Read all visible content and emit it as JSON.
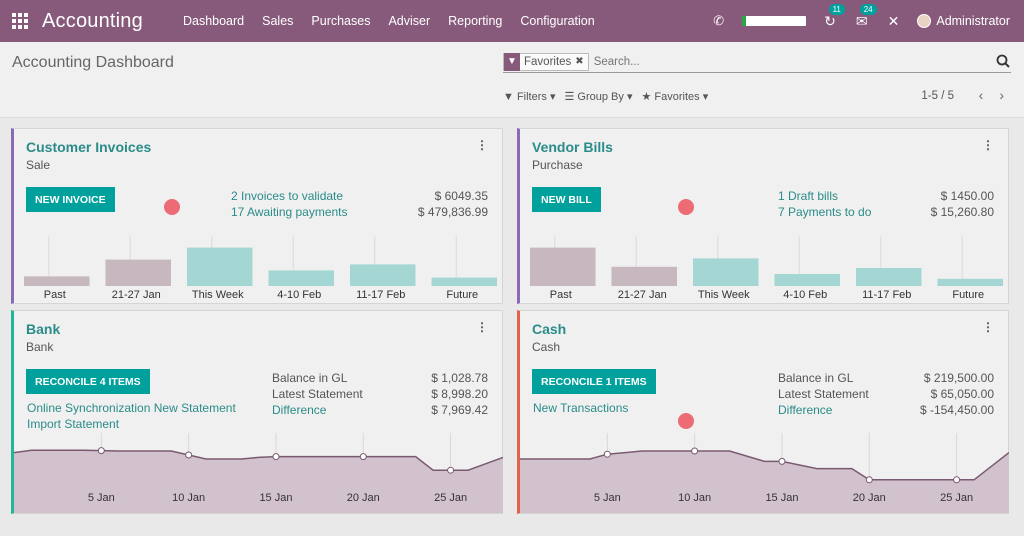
{
  "navbar": {
    "brand": "Accounting",
    "menu": [
      "Dashboard",
      "Sales",
      "Purchases",
      "Adviser",
      "Reporting",
      "Configuration"
    ],
    "activity_badge": "11",
    "messages_badge": "24",
    "user": "Administrator",
    "accent_color": "#875a7b"
  },
  "control": {
    "title": "Accounting Dashboard",
    "facet_label": "Favorites",
    "search_placeholder": "Search...",
    "filters_label": "Filters",
    "groupby_label": "Group By",
    "favorites_label": "Favorites",
    "pager": "1-5 / 5"
  },
  "cards": [
    {
      "title": "Customer Invoices",
      "subtitle": "Sale",
      "button": "NEW INVOICE",
      "border_color": "#8b6ab5",
      "links": [
        "2 Invoices to validate",
        "17 Awaiting payments"
      ],
      "amounts": [
        "$ 6049.35",
        "$ 479,836.99"
      ]
    },
    {
      "title": "Vendor Bills",
      "subtitle": "Purchase",
      "button": "NEW BILL",
      "border_color": "#8b6ab5",
      "links": [
        "1 Draft bills",
        "7 Payments to do"
      ],
      "amounts": [
        "$ 1450.00",
        "$ 15,260.80"
      ]
    },
    {
      "title": "Bank",
      "subtitle": "Bank",
      "button": "RECONCILE 4 ITEMS",
      "border_color": "#21b799",
      "labels": [
        "Balance in GL",
        "Latest Statement"
      ],
      "links": [
        "Online Synchronization New Statement",
        "Import Statement",
        "Difference"
      ],
      "amounts": [
        "$ 1,028.78",
        "$ 8,998.20",
        "$ 7,969.42"
      ]
    },
    {
      "title": "Cash",
      "subtitle": "Cash",
      "button": "RECONCILE 1 ITEMS",
      "border_color": "#e3624f",
      "labels": [
        "Balance in GL",
        "Latest Statement"
      ],
      "links": [
        "New Transactions",
        "Difference"
      ],
      "amounts": [
        "$ 219,500.00",
        "$ 65,050.00",
        "$ -154,450.00"
      ]
    }
  ],
  "chart_data": [
    {
      "type": "bar",
      "categories": [
        "Past",
        "21-27 Jan",
        "This Week",
        "4-10 Feb",
        "11-17 Feb",
        "Future"
      ],
      "values": [
        8,
        22,
        32,
        13,
        18,
        7
      ],
      "colors": [
        "#c6b8be",
        "#c6b8be",
        "#a4d7d3",
        "#a4d7d3",
        "#a4d7d3",
        "#a4d7d3"
      ]
    },
    {
      "type": "bar",
      "categories": [
        "Past",
        "21-27 Jan",
        "This Week",
        "4-10 Feb",
        "11-17 Feb",
        "Future"
      ],
      "values": [
        32,
        16,
        23,
        10,
        15,
        6
      ],
      "colors": [
        "#c6b8be",
        "#c6b8be",
        "#a4d7d3",
        "#a4d7d3",
        "#a4d7d3",
        "#a4d7d3"
      ]
    },
    {
      "type": "area",
      "tick_labels": [
        "5 Jan",
        "10 Jan",
        "15 Jan",
        "20 Jan",
        "25 Jan"
      ],
      "x": [
        0,
        1,
        3,
        4,
        6,
        7,
        8,
        9,
        11,
        12,
        13,
        14,
        15,
        16,
        17,
        18,
        20,
        21,
        23,
        24,
        25,
        26,
        27,
        28
      ],
      "y": [
        68,
        71,
        71,
        71,
        70,
        70,
        70,
        70,
        60,
        60,
        60,
        62,
        63,
        63,
        63,
        63,
        63,
        63,
        63,
        46,
        46,
        46,
        54,
        62
      ],
      "ylim": [
        0,
        100
      ],
      "markers": [
        5,
        10,
        15,
        20,
        25
      ]
    },
    {
      "type": "area",
      "tick_labels": [
        "5 Jan",
        "10 Jan",
        "15 Jan",
        "20 Jan",
        "25 Jan"
      ],
      "x": [
        0,
        1,
        3,
        4,
        5,
        7,
        8,
        10,
        12,
        14,
        15,
        17,
        18,
        19,
        20,
        22,
        23,
        25,
        26,
        28
      ],
      "y": [
        60,
        60,
        60,
        60,
        66,
        70,
        70,
        70,
        70,
        57,
        57,
        48,
        48,
        48,
        34,
        34,
        34,
        34,
        34,
        68
      ],
      "ylim": [
        0,
        100
      ],
      "markers": [
        5,
        10,
        15,
        20,
        25
      ]
    }
  ]
}
